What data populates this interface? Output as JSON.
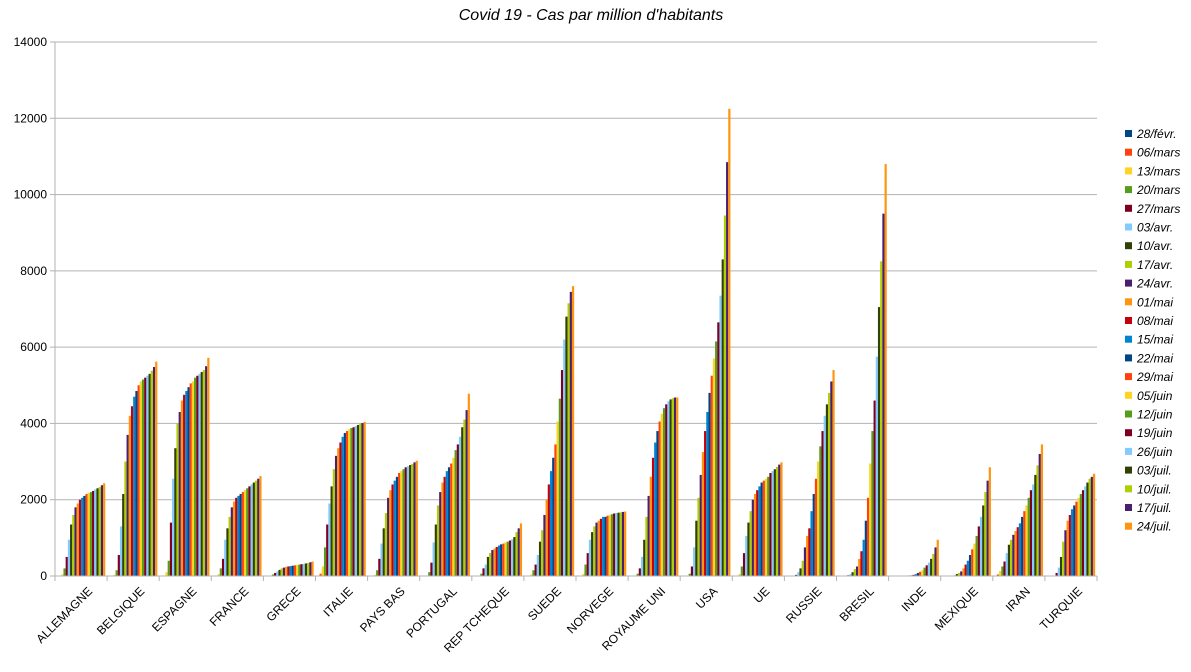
{
  "chart_data": {
    "type": "bar",
    "title": "Covid 19 - Cas par million d'habitants",
    "xlabel": "",
    "ylabel": "",
    "ylim": [
      0,
      14000
    ],
    "yticks": [
      "0",
      "2000",
      "4000",
      "6000",
      "8000",
      "10000",
      "12000",
      "14000"
    ],
    "grid": true,
    "legend_position": "right",
    "categories": [
      "ALLEMAGNE",
      "BELGIQUE",
      "ESPAGNE",
      "FRANCE",
      "GRECE",
      "ITALIE",
      "PAYS BAS",
      "PORTUGAL",
      "REP TCHEQUE",
      "SUEDE",
      "NORVEGE",
      "ROYAUME UNI",
      "USA",
      "UE",
      "RUSSIE",
      "BRESIL",
      "INDE",
      "MEXIQUE",
      "IRAN",
      "TURQUIE"
    ],
    "series": [
      {
        "name": "28/févr.",
        "color": "#004586",
        "values": [
          0,
          0,
          0,
          0,
          0,
          0,
          0,
          0,
          0,
          0,
          0,
          0,
          0,
          0,
          0,
          0,
          0,
          0,
          5,
          0
        ]
      },
      {
        "name": "06/mars",
        "color": "#ff420e",
        "values": [
          5,
          5,
          5,
          5,
          0,
          60,
          5,
          0,
          0,
          5,
          5,
          0,
          0,
          5,
          0,
          0,
          0,
          0,
          40,
          0
        ]
      },
      {
        "name": "13/mars",
        "color": "#ffd320",
        "values": [
          40,
          30,
          100,
          50,
          10,
          250,
          30,
          10,
          10,
          40,
          50,
          10,
          5,
          50,
          0,
          0,
          0,
          0,
          130,
          0
        ]
      },
      {
        "name": "20/mars",
        "color": "#579d1c",
        "values": [
          200,
          150,
          400,
          200,
          40,
          750,
          150,
          100,
          60,
          150,
          300,
          60,
          60,
          250,
          5,
          5,
          0,
          0,
          250,
          10
        ]
      },
      {
        "name": "27/mars",
        "color": "#7e0021",
        "values": [
          500,
          550,
          1400,
          450,
          80,
          1350,
          450,
          350,
          200,
          300,
          600,
          200,
          250,
          600,
          30,
          20,
          0,
          10,
          380,
          80
        ]
      },
      {
        "name": "03/avr.",
        "color": "#83caff",
        "values": [
          950,
          1300,
          2550,
          950,
          120,
          1900,
          850,
          880,
          300,
          550,
          950,
          500,
          750,
          1050,
          100,
          50,
          5,
          20,
          600,
          220
        ]
      },
      {
        "name": "10/avr.",
        "color": "#314004",
        "values": [
          1350,
          2150,
          3350,
          1250,
          160,
          2350,
          1250,
          1350,
          500,
          900,
          1150,
          950,
          1450,
          1400,
          200,
          100,
          5,
          50,
          820,
          500
        ]
      },
      {
        "name": "17/avr.",
        "color": "#aecf00",
        "values": [
          1600,
          3000,
          4000,
          1550,
          200,
          2800,
          1650,
          1850,
          600,
          1200,
          1300,
          1550,
          2050,
          1700,
          400,
          180,
          10,
          80,
          950,
          900
        ]
      },
      {
        "name": "24/avr.",
        "color": "#4b1f6f",
        "values": [
          1800,
          3700,
          4300,
          1800,
          220,
          3150,
          2050,
          2200,
          680,
          1600,
          1400,
          2100,
          2650,
          2000,
          750,
          250,
          15,
          120,
          1080,
          1200
        ]
      },
      {
        "name": "01/mai",
        "color": "#ff950e",
        "values": [
          1900,
          4200,
          4600,
          1950,
          240,
          3350,
          2250,
          2450,
          720,
          2000,
          1450,
          2600,
          3250,
          2150,
          1050,
          450,
          20,
          200,
          1180,
          1450
        ]
      },
      {
        "name": "08/mai",
        "color": "#c5000b",
        "values": [
          2000,
          4450,
          4750,
          2050,
          250,
          3500,
          2400,
          2600,
          760,
          2400,
          1500,
          3100,
          3800,
          2250,
          1250,
          650,
          30,
          300,
          1280,
          1600
        ]
      },
      {
        "name": "15/mai",
        "color": "#0084d1",
        "values": [
          2050,
          4700,
          4850,
          2100,
          260,
          3650,
          2500,
          2750,
          800,
          2750,
          1550,
          3500,
          4300,
          2350,
          1700,
          950,
          50,
          400,
          1380,
          1750
        ]
      },
      {
        "name": "22/mai",
        "color": "#004586",
        "values": [
          2100,
          4850,
          4950,
          2150,
          270,
          3750,
          2600,
          2850,
          830,
          3100,
          1550,
          3800,
          4800,
          2450,
          2150,
          1450,
          80,
          550,
          1550,
          1850
        ]
      },
      {
        "name": "29/mai",
        "color": "#ff420e",
        "values": [
          2150,
          5000,
          5050,
          2200,
          280,
          3800,
          2700,
          2950,
          850,
          3450,
          1580,
          4050,
          5250,
          2500,
          2550,
          2050,
          110,
          700,
          1700,
          1950
        ]
      },
      {
        "name": "05/juin",
        "color": "#ffd320",
        "values": [
          2180,
          5100,
          5100,
          2250,
          290,
          3850,
          2750,
          3100,
          880,
          4050,
          1600,
          4250,
          5700,
          2550,
          3000,
          2950,
          150,
          850,
          1850,
          2050
        ]
      },
      {
        "name": "12/juin",
        "color": "#579d1c",
        "values": [
          2200,
          5150,
          5200,
          2300,
          300,
          3880,
          2800,
          3300,
          900,
          4650,
          1620,
          4400,
          6150,
          2600,
          3400,
          3800,
          220,
          1050,
          2050,
          2150
        ]
      },
      {
        "name": "19/juin",
        "color": "#7e0021",
        "values": [
          2230,
          5200,
          5250,
          2350,
          310,
          3900,
          2850,
          3450,
          930,
          5400,
          1640,
          4500,
          6650,
          2700,
          3800,
          4600,
          280,
          1300,
          2250,
          2250
        ]
      },
      {
        "name": "26/juin",
        "color": "#83caff",
        "values": [
          2270,
          5250,
          5300,
          2400,
          320,
          3930,
          2880,
          3650,
          960,
          6200,
          1650,
          4580,
          7350,
          2750,
          4200,
          5750,
          350,
          1550,
          2400,
          2350
        ]
      },
      {
        "name": "03/juil.",
        "color": "#314004",
        "values": [
          2300,
          5300,
          5350,
          2450,
          330,
          3960,
          2910,
          3900,
          1020,
          6800,
          1660,
          4630,
          8300,
          2800,
          4500,
          7050,
          450,
          1850,
          2650,
          2450
        ]
      },
      {
        "name": "10/juil.",
        "color": "#aecf00",
        "values": [
          2330,
          5380,
          5400,
          2500,
          340,
          3990,
          2940,
          4100,
          1150,
          7150,
          1670,
          4660,
          9450,
          2860,
          4800,
          8250,
          580,
          2200,
          2900,
          2550
        ]
      },
      {
        "name": "17/juil.",
        "color": "#4b1f6f",
        "values": [
          2380,
          5480,
          5500,
          2550,
          360,
          4010,
          2980,
          4350,
          1250,
          7450,
          1680,
          4680,
          10850,
          2920,
          5100,
          9500,
          750,
          2500,
          3200,
          2600
        ]
      },
      {
        "name": "24/juil.",
        "color": "#ff950e",
        "values": [
          2430,
          5620,
          5720,
          2620,
          380,
          4040,
          3020,
          4780,
          1380,
          7600,
          1690,
          4680,
          12250,
          2980,
          5400,
          10800,
          950,
          2850,
          3450,
          2680
        ]
      }
    ]
  }
}
